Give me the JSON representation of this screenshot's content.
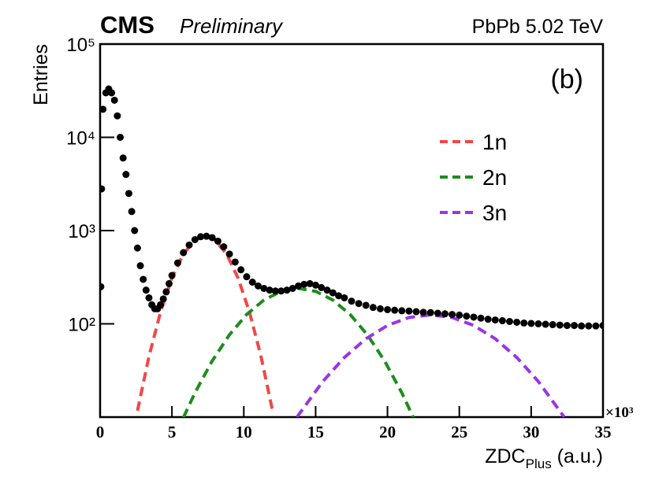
{
  "chart_data": {
    "type": "scatter",
    "experiment": "CMS",
    "status": "Preliminary",
    "collision": "PbPb 5.02 TeV",
    "panel": "(b)",
    "y_label": "Entries",
    "x_label": {
      "text": "ZDC",
      "subscript": "Plus",
      "suffix": " (a.u.)"
    },
    "x_multiplier": "×10³",
    "xlim": [
      0,
      35
    ],
    "xticks": [
      0,
      5,
      10,
      15,
      20,
      25,
      30,
      35
    ],
    "ylim": [
      10,
      100000
    ],
    "log_y": true,
    "yticks": [
      {
        "value": 100,
        "label": "10²"
      },
      {
        "value": 1000,
        "label": "10³"
      },
      {
        "value": 10000,
        "label": "10⁴"
      },
      {
        "value": 100000,
        "label": "10⁵"
      }
    ],
    "points": {
      "color": "#000000",
      "x": [
        0.05,
        0.1,
        0.2,
        0.4,
        0.6,
        0.8,
        1.0,
        1.2,
        1.4,
        1.6,
        1.8,
        2.0,
        2.2,
        2.4,
        2.6,
        2.8,
        3.0,
        3.2,
        3.4,
        3.6,
        3.8,
        4.0,
        4.2,
        4.4,
        4.6,
        4.8,
        5.0,
        5.4,
        5.8,
        6.2,
        6.6,
        7.0,
        7.4,
        7.8,
        8.2,
        8.6,
        9.0,
        9.4,
        9.8,
        10.2,
        10.6,
        11.0,
        11.4,
        11.8,
        12.2,
        12.6,
        13.0,
        13.4,
        13.8,
        14.2,
        14.6,
        15.0,
        15.4,
        15.8,
        16.2,
        16.6,
        17.0,
        17.5,
        18,
        18.5,
        19,
        19.5,
        20,
        20.5,
        21,
        21.5,
        22,
        22.5,
        23,
        23.5,
        24,
        24.5,
        25,
        25.5,
        26,
        26.5,
        27,
        27.5,
        28,
        28.5,
        29,
        29.5,
        30,
        30.5,
        31,
        31.5,
        32,
        32.5,
        33,
        33.5,
        34,
        34.5,
        35
      ],
      "values": [
        250,
        2800,
        20000,
        30000,
        33000,
        30000,
        25000,
        17000,
        10000,
        6000,
        4000,
        2500,
        1600,
        1000,
        650,
        420,
        300,
        230,
        190,
        160,
        145,
        145,
        160,
        185,
        220,
        270,
        330,
        450,
        580,
        700,
        800,
        860,
        870,
        840,
        770,
        670,
        560,
        460,
        380,
        320,
        280,
        255,
        240,
        230,
        225,
        225,
        230,
        240,
        255,
        265,
        270,
        260,
        245,
        230,
        215,
        200,
        190,
        175,
        165,
        158,
        150,
        145,
        142,
        140,
        138,
        137,
        135,
        133,
        132,
        130,
        128,
        126,
        124,
        121,
        118,
        115,
        112,
        110,
        108,
        106,
        104,
        102,
        101,
        100,
        99,
        98,
        97,
        96,
        96,
        95,
        95,
        95,
        96
      ]
    },
    "series": [
      {
        "name": "1n",
        "color": "#f04848",
        "x": [
          2.6,
          3.4,
          4.2,
          5.0,
          5.8,
          6.6,
          7.3,
          8.0,
          8.8,
          9.6,
          10.4,
          11.2,
          12.0
        ],
        "values": [
          11.7,
          44.6,
          133,
          310,
          561,
          791,
          870,
          791,
          561,
          310,
          133,
          44.6,
          11.7
        ]
      },
      {
        "name": "2n",
        "color": "#1e8c1e",
        "x": [
          5.8,
          6.6,
          7.8,
          9.0,
          10.2,
          11.4,
          12.6,
          13.8,
          15.0,
          16.2,
          17.4,
          18.6,
          19.8,
          21.0,
          21.8
        ],
        "values": [
          9.9,
          18.2,
          40.0,
          76.3,
          126,
          180,
          223,
          240,
          223,
          180,
          126,
          76.3,
          40.0,
          18.2,
          9.9
        ]
      },
      {
        "name": "3n",
        "color": "#9a34e8",
        "x": [
          13.7,
          15.5,
          17.0,
          18.5,
          20.0,
          21.5,
          23.0,
          24.5,
          26.0,
          27.5,
          29.0,
          30.5,
          32.3
        ],
        "values": [
          10,
          24.1,
          43.6,
          69.2,
          96.1,
          117,
          125,
          117,
          96.1,
          69.2,
          43.6,
          24.1,
          10
        ]
      }
    ]
  }
}
